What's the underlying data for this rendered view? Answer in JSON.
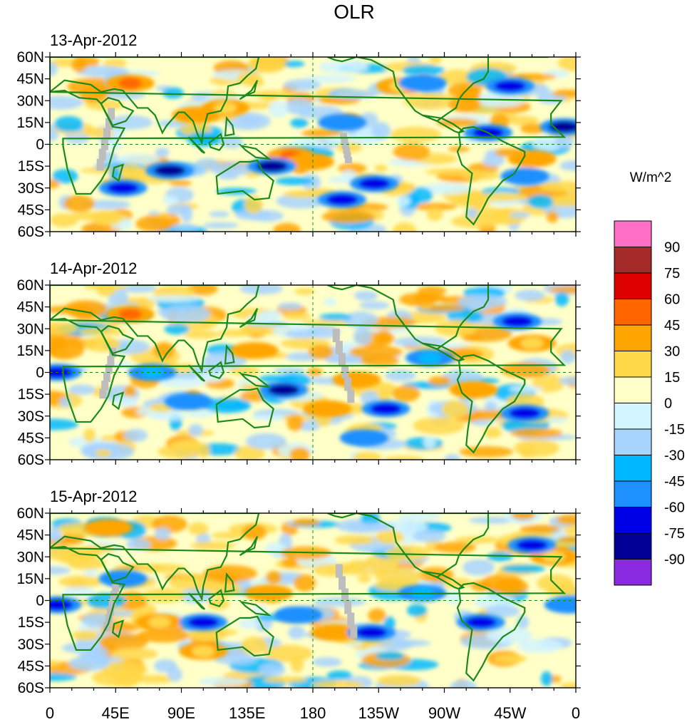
{
  "title": "OLR",
  "panels": [
    {
      "date": "13-Apr-2012"
    },
    {
      "date": "14-Apr-2012"
    },
    {
      "date": "15-Apr-2012"
    }
  ],
  "lat_labels": [
    "60N",
    "45N",
    "30N",
    "15N",
    "0",
    "15S",
    "30S",
    "45S",
    "60S"
  ],
  "lon_labels": [
    "0",
    "45E",
    "90E",
    "135E",
    "180",
    "135W",
    "90W",
    "45W",
    "0"
  ],
  "colorbar": {
    "unit": "W/m^2",
    "labels": [
      "90",
      "75",
      "60",
      "45",
      "30",
      "15",
      "0",
      "-15",
      "-30",
      "-45",
      "-60",
      "-75",
      "-90"
    ],
    "colors": [
      "#ff6ec7",
      "#a52a2a",
      "#dd0000",
      "#ff6600",
      "#ffa500",
      "#ffd84a",
      "#ffffc8",
      "#d2f5ff",
      "#a7d3ff",
      "#00b8ff",
      "#1e90ff",
      "#0000e6",
      "#000096",
      "#8a2be2"
    ]
  },
  "chart_data": {
    "type": "heatmap",
    "variable": "OLR",
    "units": "W/m^2",
    "levels": [
      -90,
      -75,
      -60,
      -45,
      -30,
      -15,
      0,
      15,
      30,
      45,
      60,
      75,
      90
    ],
    "x_range": [
      0,
      360
    ],
    "y_range": [
      -60,
      60
    ],
    "x_ticks": [
      "0",
      "45E",
      "90E",
      "135E",
      "180",
      "135W",
      "90W",
      "45W",
      "0"
    ],
    "y_ticks": [
      "60N",
      "45N",
      "30N",
      "15N",
      "0",
      "15S",
      "30S",
      "45S",
      "60S"
    ],
    "panels": [
      "13-Apr-2012",
      "14-Apr-2012",
      "15-Apr-2012"
    ],
    "anomaly_features": [
      [
        {
          "lon": 55,
          "lat": 42,
          "value": 45
        },
        {
          "lon": 165,
          "lat": -8,
          "value": 45
        },
        {
          "lon": 178,
          "lat": -12,
          "value": 30
        },
        {
          "lon": 100,
          "lat": 20,
          "value": 30
        },
        {
          "lon": 240,
          "lat": 40,
          "value": 15
        },
        {
          "lon": 330,
          "lat": -10,
          "value": 30
        },
        {
          "lon": 120,
          "lat": 25,
          "value": 20
        },
        {
          "lon": 82,
          "lat": -18,
          "value": -90
        },
        {
          "lon": 50,
          "lat": -30,
          "value": -75
        },
        {
          "lon": 152,
          "lat": -15,
          "value": -90
        },
        {
          "lon": 200,
          "lat": -38,
          "value": -75
        },
        {
          "lon": 222,
          "lat": -27,
          "value": -75
        },
        {
          "lon": 352,
          "lat": 12,
          "value": -90
        },
        {
          "lon": 300,
          "lat": 8,
          "value": -75
        },
        {
          "lon": 255,
          "lat": 42,
          "value": -60
        },
        {
          "lon": 200,
          "lat": 15,
          "value": -60
        },
        {
          "lon": 315,
          "lat": 40,
          "value": -75
        },
        {
          "lon": 325,
          "lat": -22,
          "value": -60
        }
      ],
      [
        {
          "lon": 55,
          "lat": 40,
          "value": 45
        },
        {
          "lon": 140,
          "lat": 15,
          "value": 30
        },
        {
          "lon": 190,
          "lat": -25,
          "value": 30
        },
        {
          "lon": 210,
          "lat": -5,
          "value": 30
        },
        {
          "lon": 290,
          "lat": -12,
          "value": 30
        },
        {
          "lon": 330,
          "lat": 20,
          "value": 15
        },
        {
          "lon": 160,
          "lat": -12,
          "value": -90
        },
        {
          "lon": 230,
          "lat": -25,
          "value": -75
        },
        {
          "lon": 5,
          "lat": 0,
          "value": -75
        },
        {
          "lon": 95,
          "lat": -20,
          "value": -60
        },
        {
          "lon": 325,
          "lat": -28,
          "value": -75
        },
        {
          "lon": 320,
          "lat": 35,
          "value": -75
        },
        {
          "lon": 215,
          "lat": -45,
          "value": -60
        },
        {
          "lon": 70,
          "lat": 0,
          "value": -45
        },
        {
          "lon": 260,
          "lat": 10,
          "value": -45
        }
      ],
      [
        {
          "lon": 150,
          "lat": 5,
          "value": 30
        },
        {
          "lon": 195,
          "lat": -22,
          "value": 30
        },
        {
          "lon": 40,
          "lat": 50,
          "value": 30
        },
        {
          "lon": 105,
          "lat": -35,
          "value": 20
        },
        {
          "lon": 75,
          "lat": -15,
          "value": 25
        },
        {
          "lon": 345,
          "lat": 30,
          "value": 15
        },
        {
          "lon": 5,
          "lat": -3,
          "value": -75
        },
        {
          "lon": 105,
          "lat": -15,
          "value": -75
        },
        {
          "lon": 295,
          "lat": -15,
          "value": -75
        },
        {
          "lon": 220,
          "lat": -22,
          "value": -75
        },
        {
          "lon": 330,
          "lat": 38,
          "value": -75
        },
        {
          "lon": 50,
          "lat": 15,
          "value": -60
        },
        {
          "lon": 170,
          "lat": -10,
          "value": -60
        },
        {
          "lon": 255,
          "lat": 5,
          "value": -45
        },
        {
          "lon": 355,
          "lat": -3,
          "value": -60
        }
      ]
    ]
  }
}
